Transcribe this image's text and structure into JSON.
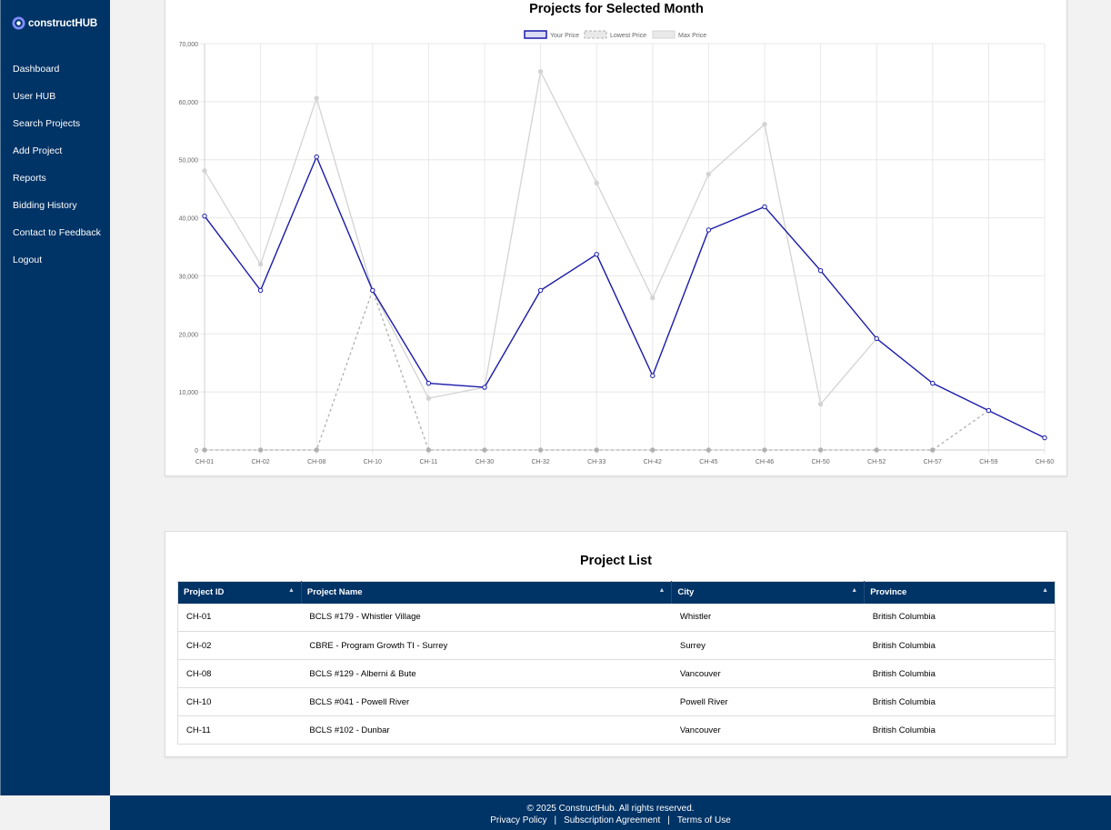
{
  "brand": {
    "name": "constructHUB"
  },
  "nav": [
    {
      "label": "Dashboard"
    },
    {
      "label": "User HUB"
    },
    {
      "label": "Search Projects"
    },
    {
      "label": "Add Project"
    },
    {
      "label": "Reports"
    },
    {
      "label": "Bidding History"
    },
    {
      "label": "Contact to Feedback"
    },
    {
      "label": "Logout"
    }
  ],
  "chart_data": {
    "type": "line",
    "title": "Projects for Selected Month",
    "categories": [
      "CH-01",
      "CH-02",
      "CH-08",
      "CH-10",
      "CH-11",
      "CH-30",
      "CH-32",
      "CH-33",
      "CH-42",
      "CH-45",
      "CH-46",
      "CH-50",
      "CH-52",
      "CH-57",
      "CH-59",
      "CH-60"
    ],
    "ylim": [
      0,
      70000
    ],
    "yticks": [
      0,
      10000,
      20000,
      30000,
      40000,
      50000,
      60000,
      70000
    ],
    "ytick_labels": [
      "0",
      "10,000",
      "20,000",
      "30,000",
      "40,000",
      "50,000",
      "60,000",
      "70,000"
    ],
    "grid": true,
    "legend_position": "top-center",
    "series": [
      {
        "name": "Your Price",
        "color": "#1a1aaa",
        "style": "solid",
        "values": [
          40300,
          27500,
          50500,
          27500,
          11500,
          10800,
          27500,
          33700,
          12800,
          37900,
          41900,
          30900,
          19200,
          11500,
          6800,
          2100
        ]
      },
      {
        "name": "Lowest Price",
        "color": "#b0b0b0",
        "style": "dashed",
        "values": [
          0,
          0,
          0,
          27500,
          0,
          0,
          0,
          0,
          0,
          0,
          0,
          0,
          0,
          0,
          6800,
          null
        ]
      },
      {
        "name": "Max Price",
        "color": "#d3d3d3",
        "style": "solid",
        "values": [
          48100,
          32000,
          60600,
          27500,
          8900,
          10800,
          65200,
          46000,
          26200,
          47500,
          56100,
          7900,
          19200,
          null,
          null,
          null
        ]
      }
    ]
  },
  "project_list": {
    "title": "Project List",
    "columns": [
      "Project ID",
      "Project Name",
      "City",
      "Province"
    ],
    "sort_icon": "▲",
    "rows": [
      [
        "CH-01",
        "BCLS #179 - Whistler Village",
        "Whistler",
        "British Columbia"
      ],
      [
        "CH-02",
        "CBRE - Program Growth TI - Surrey",
        "Surrey",
        "British Columbia"
      ],
      [
        "CH-08",
        "BCLS #129 - Alberni & Bute",
        "Vancouver",
        "British Columbia"
      ],
      [
        "CH-10",
        "BCLS #041 - Powell River",
        "Powell River",
        "British Columbia"
      ],
      [
        "CH-11",
        "BCLS #102 - Dunbar",
        "Vancouver",
        "British Columbia"
      ]
    ]
  },
  "footer": {
    "copyright": "© 2025 ConstructHub. All rights reserved.",
    "privacy": "Privacy Policy",
    "sep": "|",
    "subscription": "Subscription Agreement",
    "terms": "Terms of Use"
  }
}
